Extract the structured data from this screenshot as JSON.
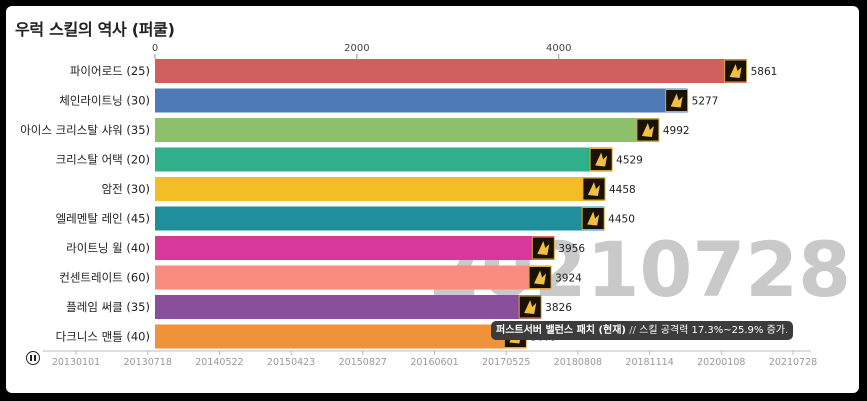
{
  "title": "우럭 스킬의 역사 (퍼쿨)",
  "date_label": "20210728",
  "annotation": {
    "heading": "퍼스트서버 밸런스 패치 (현재)",
    "separator": "//",
    "text": "스킬 공격력 17.3%~25.9% 증가."
  },
  "controls": {
    "play_icon": "pause-icon"
  },
  "chart_data": {
    "type": "bar",
    "orientation": "horizontal",
    "title": "우럭 스킬의 역사 (퍼쿨)",
    "xlim": [
      0,
      6400
    ],
    "xticks": [
      0,
      2000,
      4000
    ],
    "grid": false,
    "bars": [
      {
        "label": "파이어로드 (25)",
        "value": 5861,
        "color": "#d0605e",
        "icon": "fire-road-skill-icon"
      },
      {
        "label": "체인라이트닝 (30)",
        "value": 5277,
        "color": "#4e79b7",
        "icon": "chain-lightning-skill-icon"
      },
      {
        "label": "아이스 크리스탈 샤워 (35)",
        "value": 4992,
        "color": "#8cc06a",
        "icon": "ice-crystal-shower-skill-icon"
      },
      {
        "label": "크리스탈 어택 (20)",
        "value": 4529,
        "color": "#2fb08a",
        "icon": "crystal-attack-skill-icon"
      },
      {
        "label": "암전 (30)",
        "value": 4458,
        "color": "#f3bd25",
        "icon": "blackout-skill-icon"
      },
      {
        "label": "엘레멘탈 레인 (45)",
        "value": 4450,
        "color": "#1f8f9b",
        "icon": "elemental-rain-skill-icon"
      },
      {
        "label": "라이트닝 윌 (40)",
        "value": 3956,
        "color": "#d8379c",
        "icon": "lightning-will-skill-icon"
      },
      {
        "label": "컨센트레이트 (60)",
        "value": 3924,
        "color": "#f88c7e",
        "icon": "concentrate-skill-icon"
      },
      {
        "label": "플레임 써클 (35)",
        "value": 3826,
        "color": "#8a4f9c",
        "icon": "flame-circle-skill-icon"
      },
      {
        "label": "다크니스 맨틀 (40)",
        "value": 3679,
        "color": "#f0923a",
        "icon": "darkness-mantle-skill-icon"
      }
    ],
    "timeline": [
      "20130101",
      "20130718",
      "20140522",
      "20150423",
      "20150827",
      "20160601",
      "20170525",
      "20180808",
      "20181114",
      "20200108",
      "20210728"
    ]
  }
}
